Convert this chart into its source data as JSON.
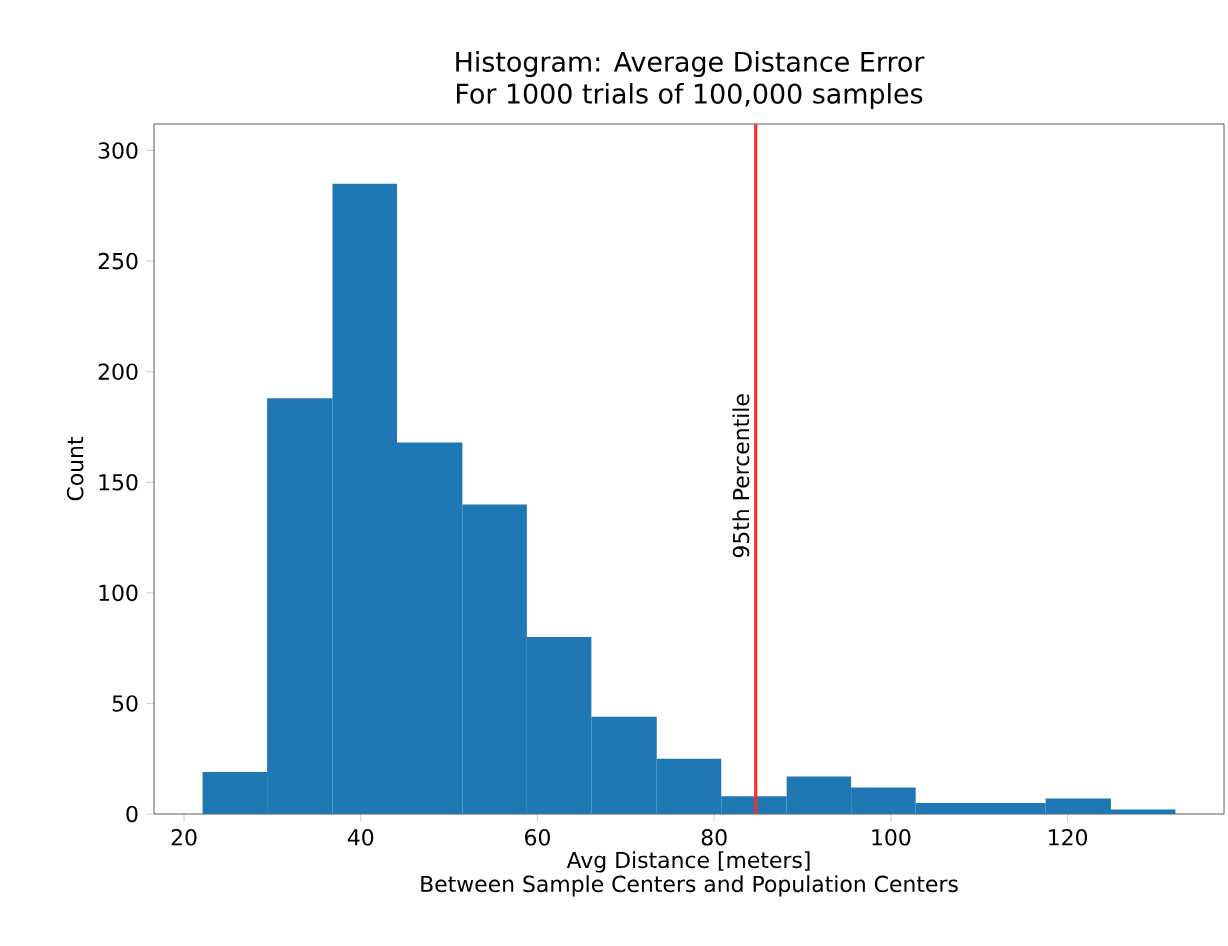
{
  "chart_data": {
    "type": "histogram",
    "title": "Histogram: Average Distance Error",
    "subtitle": "For 1000 trials of 100,000 samples",
    "xlabel": "Avg Distance [meters]",
    "ylabel": "Count",
    "annotations": [
      "Between Sample Centers and Population Centers"
    ],
    "bins": [
      22.1,
      29.4,
      36.8,
      44.1,
      51.5,
      58.8,
      66.1,
      73.5,
      80.8,
      88.2,
      95.5,
      102.8,
      110.2,
      117.5,
      124.9,
      132.2
    ],
    "values": [
      19,
      188,
      285,
      168,
      140,
      80,
      44,
      25,
      8,
      17,
      12,
      5,
      5,
      7,
      2
    ],
    "color": "#1f77b4",
    "xlim": [
      16.6,
      137.7
    ],
    "ylim": [
      0,
      312
    ],
    "xticks": [
      20,
      40,
      60,
      80,
      100,
      120
    ],
    "yticks": [
      0,
      50,
      100,
      150,
      200,
      250,
      300
    ],
    "ref_lines": [
      {
        "axis": "x",
        "value": 84.7,
        "label": "95th Percentile",
        "color": "#f03030"
      }
    ]
  }
}
